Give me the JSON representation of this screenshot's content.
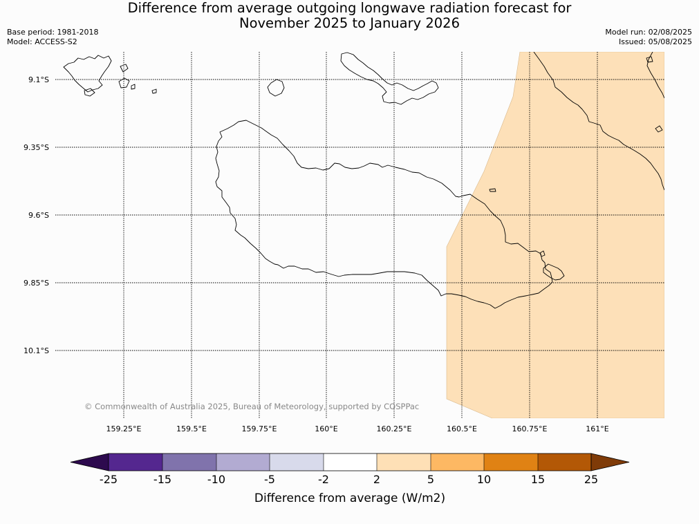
{
  "header": {
    "title_line1": "Difference from average outgoing longwave radiation forecast for",
    "title_line2": "November 2025 to January 2026",
    "base_period": "Base period: 1981-2018",
    "model": "Model: ACCESS-S2",
    "model_run": "Model run: 02/08/2025",
    "issued": "Issued: 05/08/2025"
  },
  "map": {
    "lat_labels": [
      "9.1°S",
      "9.35°S",
      "9.6°S",
      "9.85°S",
      "10.1°S"
    ],
    "lon_labels": [
      "159.25°E",
      "159.5°E",
      "159.75°E",
      "160°E",
      "160.25°E",
      "160.5°E",
      "160.75°E",
      "161°E"
    ],
    "copyright": "© Commonwealth of Australia 2025, Bureau of Meteorology, supported by COSPPac",
    "anomaly_fill_color": "#fde0b8",
    "coastline_color": "#000000"
  },
  "colorbar": {
    "title": "Difference from average (W/m2)",
    "tick_labels": [
      "-25",
      "-15",
      "-10",
      "-5",
      "-2",
      "2",
      "5",
      "10",
      "15",
      "25"
    ],
    "colors": [
      "#2d0a4e",
      "#54278f",
      "#8073ac",
      "#b2abd2",
      "#d8daeb",
      "#ffffff",
      "#fee0b6",
      "#fdb863",
      "#e08214",
      "#b35806",
      "#7f3b08"
    ]
  }
}
